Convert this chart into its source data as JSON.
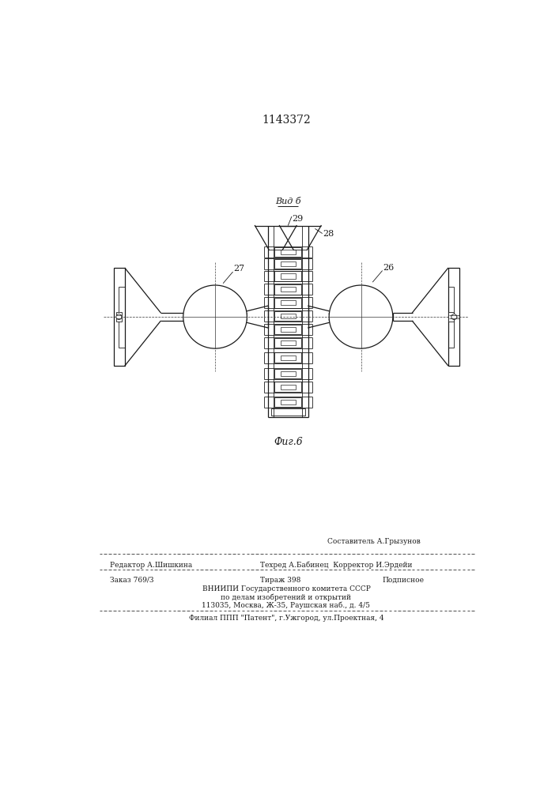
{
  "patent_number": "1143372",
  "fig_label": "Фиг.6",
  "view_label": "Вид б",
  "label_26": "26",
  "label_27": "27",
  "label_28": "28",
  "label_29": "29",
  "footer_sestavitel": "Составитель А.Грызунов",
  "footer_redaktor": "Редактор А.Шишкина",
  "footer_tekhred": "Техред А.Бабинец",
  "footer_korrektor": "Корректор И.Эрдейи",
  "footer_zakaz": "Заказ 769/3",
  "footer_tirazh": "Тираж 398",
  "footer_podpisnoe": "Подписное",
  "footer_vniipи": "ВНИИПИ Государственного комитета СССР",
  "footer_dela": "по делам изобретений и открытий",
  "footer_addr": "113035, Москва, Ж-35, Раушская наб., д. 4/5",
  "footer_filial": "Филиал ППП \"Патент\", г.Ужгород, ул.Проектная, 4",
  "bg_color": "#ffffff",
  "line_color": "#1a1a1a"
}
